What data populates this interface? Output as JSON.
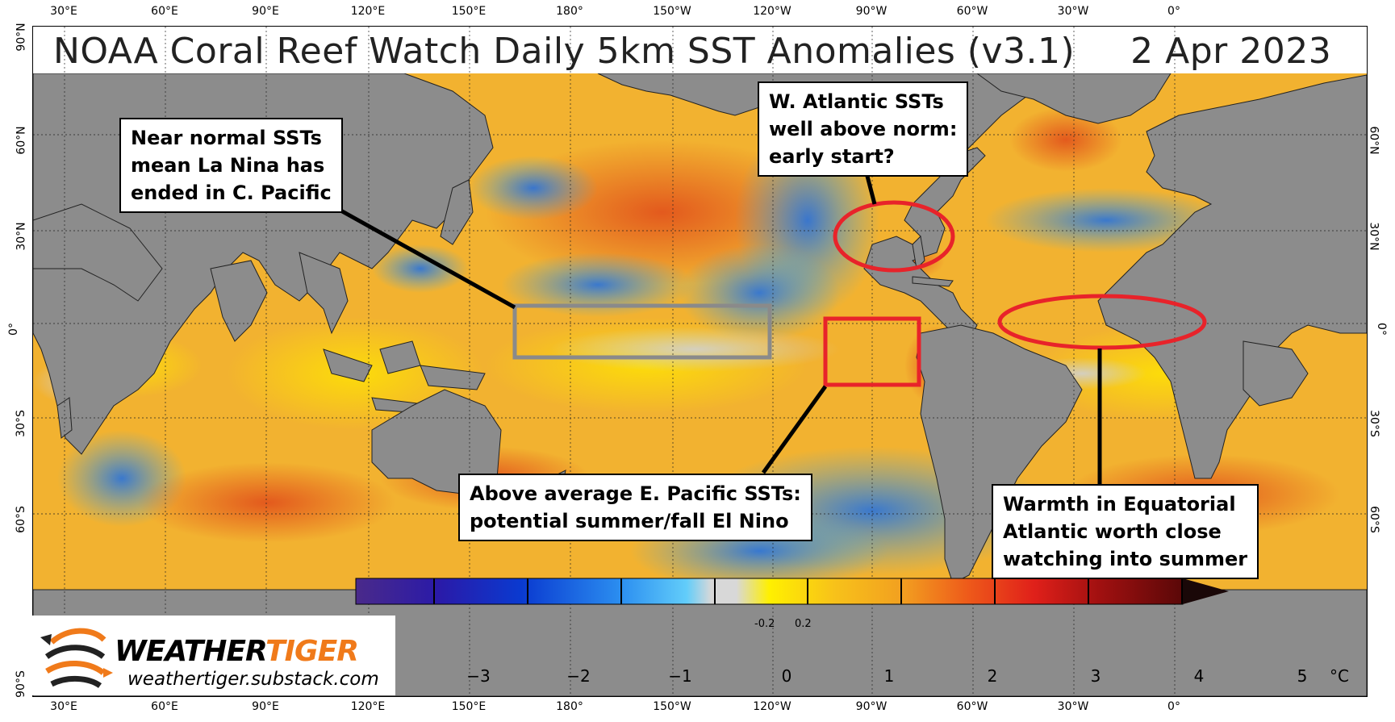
{
  "title": {
    "main": "NOAA Coral Reef Watch Daily 5km SST Anomalies  (v3.1)",
    "date": "2 Apr 2023"
  },
  "longitude_labels": [
    "30°E",
    "60°E",
    "90°E",
    "120°E",
    "150°E",
    "180°",
    "150°W",
    "120°W",
    "90°W",
    "60°W",
    "30°W",
    "0°"
  ],
  "latitude_labels_left": [
    "90°N",
    "60°N",
    "30°N",
    "0°",
    "30°S",
    "60°S",
    "90°S"
  ],
  "latitude_labels_right": [
    "60°N",
    "30°N",
    "0°",
    "30°S",
    "60°S"
  ],
  "callouts": {
    "central_pacific": [
      "Near normal SSTs",
      "mean La Nina has",
      "ended in C. Pacific"
    ],
    "west_atlantic": [
      "W. Atlantic SSTs",
      "well above norm:",
      "early start?"
    ],
    "east_pacific": [
      "Above average E. Pacific SSTs:",
      "potential summer/fall El Nino"
    ],
    "equatorial_atlantic": [
      "Warmth in Equatorial",
      "Atlantic worth close",
      "watching into summer"
    ]
  },
  "logo": {
    "brand_part1": "WEATHER",
    "brand_part2": "TIGER",
    "url": "weathertiger.substack.com"
  },
  "colorbar": {
    "ticks": [
      "−3",
      "−2",
      "−1",
      "0",
      "1",
      "2",
      "3",
      "4",
      "5"
    ],
    "unit": "°C",
    "small_labels": [
      "-0.2",
      "0.2"
    ]
  },
  "colors": {
    "land": "#8c8c8c",
    "ocean_base": "#f2b230",
    "highlight_red": "#e8232a",
    "box_gray": "#8a8a8a"
  }
}
